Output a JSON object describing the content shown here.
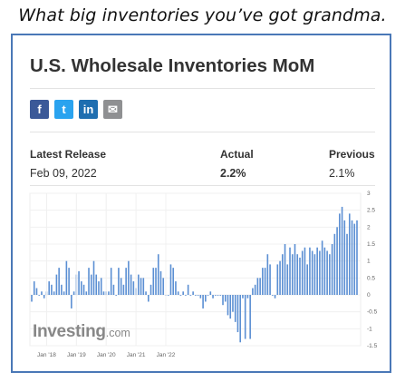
{
  "caption": "What big inventories you’ve got grandma.",
  "card": {
    "title": "U.S. Wholesale Inventories MoM",
    "share_buttons": [
      {
        "icon": "facebook-icon",
        "glyph": "f",
        "color": "#3b5998"
      },
      {
        "icon": "twitter-icon",
        "glyph": "t",
        "color": "#2aa3ef"
      },
      {
        "icon": "linkedin-icon",
        "glyph": "in",
        "color": "#1f6eb0"
      },
      {
        "icon": "email-icon",
        "glyph": "✉",
        "color": "#8f9092"
      }
    ],
    "latest_release_label": "Latest Release",
    "latest_release_date": "Feb 09, 2022",
    "actual_label": "Actual",
    "actual_value": "2.2%",
    "previous_label": "Previous",
    "previous_value": "2.1%",
    "logo_main": "Investing",
    "logo_suffix": ".com"
  },
  "chart_data": {
    "type": "bar",
    "bar_color": "#5b8fd3",
    "x_tick_labels": [
      "Jan '18",
      "Jan '19",
      "Jan '20",
      "Jan '21",
      "Jan '22"
    ],
    "y_tick_labels": [
      "3",
      "2.5",
      "2",
      "1.5",
      "1",
      "0.5",
      "0",
      "-0.5",
      "-1",
      "-1.5"
    ],
    "ylim": [
      -1.5,
      3
    ],
    "grid": true,
    "values": [
      -0.2,
      0.4,
      0.2,
      0.0,
      0.1,
      -0.1,
      0.1,
      0.4,
      0.3,
      0.1,
      0.6,
      0.8,
      0.3,
      0.1,
      1.0,
      0.8,
      -0.4,
      0.1,
      0.6,
      0.7,
      0.4,
      0.3,
      0.1,
      0.8,
      0.6,
      1.0,
      0.6,
      0.4,
      0.5,
      0.1,
      0.1,
      0.1,
      0.8,
      0.3,
      0.0,
      0.8,
      0.5,
      0.3,
      0.8,
      1.0,
      0.6,
      0.4,
      0.2,
      0.6,
      0.5,
      0.5,
      0.1,
      -0.2,
      0.3,
      0.8,
      0.8,
      1.2,
      0.7,
      0.5,
      0.0,
      0.0,
      0.9,
      0.8,
      0.4,
      0.1,
      0.0,
      0.1,
      0.0,
      0.3,
      0.0,
      0.1,
      0.0,
      0.0,
      -0.1,
      -0.4,
      -0.2,
      0.0,
      0.1,
      -0.1,
      0.0,
      0.0,
      0.0,
      -0.3,
      -0.2,
      -0.6,
      -0.7,
      -0.5,
      -0.8,
      -1.1,
      -1.4,
      -0.1,
      -1.3,
      -0.1,
      -1.3,
      0.2,
      0.3,
      0.5,
      0.5,
      0.8,
      0.8,
      1.2,
      0.9,
      0.0,
      -0.1,
      0.9,
      1.0,
      1.2,
      1.5,
      0.9,
      1.4,
      1.2,
      1.5,
      1.2,
      1.1,
      1.3,
      1.4,
      0.9,
      1.4,
      1.3,
      1.2,
      1.4,
      1.3,
      1.6,
      1.4,
      1.3,
      1.2,
      1.5,
      1.8,
      2.0,
      2.4,
      2.6,
      2.2,
      1.8,
      2.4,
      2.2,
      2.1,
      2.2
    ]
  }
}
